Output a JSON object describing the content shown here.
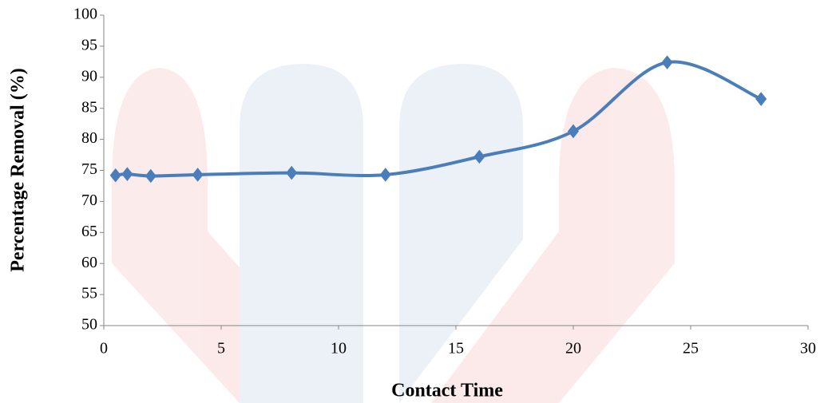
{
  "chart_data": {
    "type": "line",
    "x_label": "Contact Time",
    "y_label": "Percentage Removal (%)",
    "x": [
      0.5,
      1,
      2,
      4,
      8,
      12,
      16,
      20,
      24,
      28
    ],
    "series": [
      {
        "color": "#4a7ebb",
        "values": [
          74.2,
          74.4,
          74.1,
          74.3,
          74.6,
          74.3,
          77.2,
          81.3,
          92.4,
          86.5
        ]
      }
    ],
    "xlim": [
      0,
      30
    ],
    "xticks": [
      0,
      5,
      10,
      15,
      20,
      25,
      30
    ],
    "ylim": [
      50,
      100
    ],
    "yticks": [
      50,
      55,
      60,
      65,
      70,
      75,
      80,
      85,
      90,
      95,
      100
    ],
    "smooth": true,
    "marker": "diamond",
    "grid": false
  }
}
